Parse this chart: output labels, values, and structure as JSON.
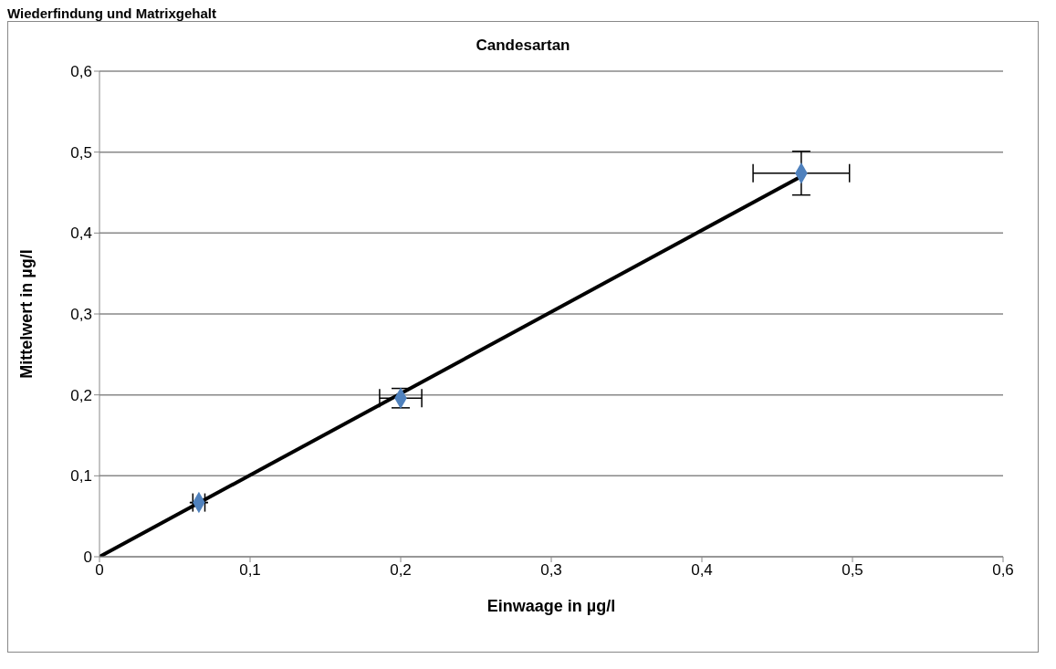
{
  "chart_data": {
    "type": "scatter",
    "title": "Candesartan",
    "annotations": [
      "Wiederfindung und Matrixgehalt"
    ],
    "xlabel": "Einwaage in µg/l",
    "ylabel": "Mittelwert in µg/l",
    "xlim": [
      0,
      0.6
    ],
    "xticks": [
      {
        "value": 0,
        "label": "0"
      },
      {
        "value": 0.1,
        "label": "0,1"
      },
      {
        "value": 0.2,
        "label": "0,2"
      },
      {
        "value": 0.3,
        "label": "0,3"
      },
      {
        "value": 0.4,
        "label": "0,4"
      },
      {
        "value": 0.5,
        "label": "0,5"
      },
      {
        "value": 0.6,
        "label": "0,6"
      }
    ],
    "ylim": [
      0,
      0.6
    ],
    "yticks": [
      {
        "value": 0,
        "label": "0"
      },
      {
        "value": 0.1,
        "label": "0,1"
      },
      {
        "value": 0.2,
        "label": "0,2"
      },
      {
        "value": 0.3,
        "label": "0,3"
      },
      {
        "value": 0.4,
        "label": "0,4"
      },
      {
        "value": 0.5,
        "label": "0,5"
      },
      {
        "value": 0.6,
        "label": "0,6"
      }
    ],
    "grid": "y",
    "series": [
      {
        "color": "#4f81bd",
        "marker": "diamond",
        "x": [
          0.066,
          0.2,
          0.466
        ],
        "values": [
          0.067,
          0.196,
          0.474
        ],
        "errors": [
          null,
          0.012,
          0.027
        ],
        "xerrors": [
          0.004,
          0.014,
          0.032
        ]
      },
      {
        "type": "line",
        "color": "#000000",
        "marker": "none",
        "line_style": "solid",
        "x": [
          0,
          0.466
        ],
        "values": [
          0,
          0.47
        ]
      }
    ]
  }
}
